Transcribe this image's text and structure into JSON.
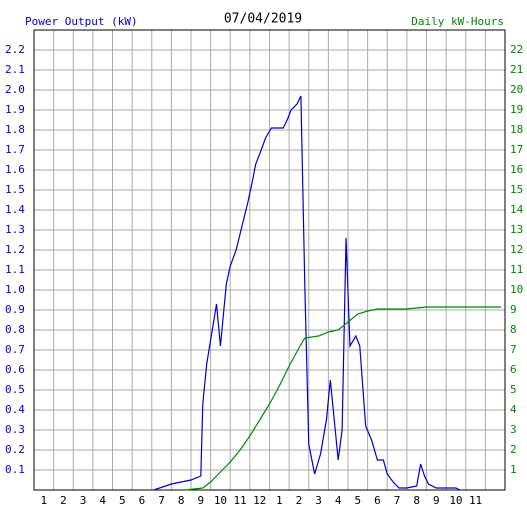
{
  "chart_data": {
    "type": "line",
    "title": "07/04/2019",
    "y_label": "Power Output (kW)",
    "y2_label": "Daily kW-Hours",
    "xlim": [
      0,
      24
    ],
    "ylim": [
      0,
      2.3
    ],
    "y2lim": [
      0,
      23
    ],
    "grid": true,
    "xticks": [
      {
        "value": 0.5,
        "label": "1"
      },
      {
        "value": 1.5,
        "label": "2"
      },
      {
        "value": 2.5,
        "label": "3"
      },
      {
        "value": 3.5,
        "label": "4"
      },
      {
        "value": 4.5,
        "label": "5"
      },
      {
        "value": 5.5,
        "label": "6"
      },
      {
        "value": 6.5,
        "label": "7"
      },
      {
        "value": 7.5,
        "label": "8"
      },
      {
        "value": 8.5,
        "label": "9"
      },
      {
        "value": 9.5,
        "label": "10"
      },
      {
        "value": 10.5,
        "label": "11"
      },
      {
        "value": 11.5,
        "label": "12"
      },
      {
        "value": 12.5,
        "label": "1"
      },
      {
        "value": 13.5,
        "label": "2"
      },
      {
        "value": 14.5,
        "label": "3"
      },
      {
        "value": 15.5,
        "label": "4"
      },
      {
        "value": 16.5,
        "label": "5"
      },
      {
        "value": 17.5,
        "label": "6"
      },
      {
        "value": 18.5,
        "label": "7"
      },
      {
        "value": 19.5,
        "label": "8"
      },
      {
        "value": 20.5,
        "label": "9"
      },
      {
        "value": 21.5,
        "label": "10"
      },
      {
        "value": 22.5,
        "label": "11"
      }
    ],
    "yticks": [
      0.1,
      0.2,
      0.3,
      0.4,
      0.5,
      0.6,
      0.7,
      0.8,
      0.9,
      {
        "value": 1,
        "label": "1.0"
      },
      1.1,
      1.2,
      1.3,
      1.4,
      1.5,
      1.6,
      1.7,
      1.8,
      1.9,
      {
        "value": 2,
        "label": "2.0"
      },
      2.1,
      2.2
    ],
    "y2ticks": [
      1,
      2,
      3,
      4,
      5,
      6,
      7,
      8,
      9,
      10,
      11,
      12,
      13,
      14,
      15,
      16,
      17,
      18,
      19,
      20,
      21,
      22
    ],
    "series": [
      {
        "color": "#0000cc",
        "x": [
          6.1,
          7.0,
          8.0,
          8.5,
          8.6,
          8.8,
          9.0,
          9.3,
          9.5,
          9.8,
          10.0,
          10.3,
          10.5,
          10.7,
          10.9,
          11.1,
          11.3,
          11.5,
          11.8,
          12.1,
          12.7,
          12.9,
          13.1,
          13.4,
          13.6,
          13.8,
          14.0,
          14.3,
          14.6,
          14.9,
          15.1,
          15.3,
          15.5,
          15.7,
          15.9,
          16.1,
          16.4,
          16.6,
          16.9,
          17.2,
          17.5,
          17.8,
          18.0,
          18.3,
          18.6,
          19.0,
          19.5,
          19.7,
          19.9,
          20.1,
          20.5,
          21.5,
          21.7
        ],
        "values": [
          0,
          0.03,
          0.05,
          0.07,
          0.43,
          0.63,
          0.75,
          0.93,
          0.72,
          1.03,
          1.12,
          1.2,
          1.28,
          1.36,
          1.44,
          1.53,
          1.63,
          1.68,
          1.76,
          1.81,
          1.81,
          1.85,
          1.9,
          1.93,
          1.97,
          1.02,
          0.23,
          0.08,
          0.18,
          0.35,
          0.55,
          0.35,
          0.15,
          0.3,
          1.26,
          0.72,
          0.77,
          0.72,
          0.32,
          0.25,
          0.15,
          0.15,
          0.08,
          0.04,
          0.01,
          0.01,
          0.02,
          0.13,
          0.07,
          0.03,
          0.01,
          0.01,
          0
        ]
      },
      {
        "color": "#008800",
        "axis": "y2",
        "x": [
          7.7,
          8.6,
          9.0,
          9.5,
          10.0,
          10.5,
          11.0,
          11.5,
          12.0,
          12.5,
          13.0,
          13.5,
          13.8,
          14.5,
          15.0,
          15.5,
          16.0,
          16.5,
          17.0,
          17.5,
          19.0,
          20.0,
          23.8
        ],
        "values": [
          0,
          0.1,
          0.4,
          0.9,
          1.4,
          2.0,
          2.7,
          3.5,
          4.3,
          5.2,
          6.2,
          7.1,
          7.6,
          7.7,
          7.9,
          8.0,
          8.4,
          8.8,
          8.95,
          9.05,
          9.05,
          9.15,
          9.15
        ]
      }
    ]
  }
}
